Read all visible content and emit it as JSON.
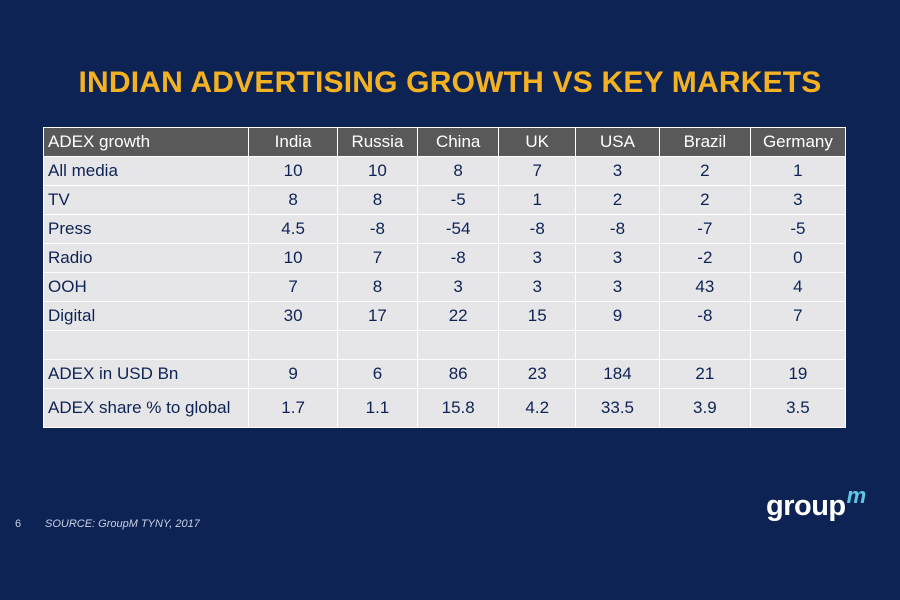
{
  "slide": {
    "title": "INDIAN ADVERTISING GROWTH VS KEY MARKETS",
    "page_number": "6",
    "source": "SOURCE: GroupM TYNY, 2017"
  },
  "logo": {
    "main": "group",
    "sup": "m"
  },
  "table": {
    "headers": [
      "ADEX growth",
      "India",
      "Russia",
      "China",
      "UK",
      "USA",
      "Brazil",
      "Germany"
    ],
    "rows": [
      [
        "All media",
        "10",
        "10",
        "8",
        "7",
        "3",
        "2",
        "1"
      ],
      [
        "TV",
        "8",
        "8",
        "-5",
        "1",
        "2",
        "2",
        "3"
      ],
      [
        "Press",
        "4.5",
        "-8",
        "-54",
        "-8",
        "-8",
        "-7",
        "-5"
      ],
      [
        "Radio",
        "10",
        "7",
        "-8",
        "3",
        "3",
        "-2",
        "0"
      ],
      [
        "OOH",
        "7",
        "8",
        "3",
        "3",
        "3",
        "43",
        "4"
      ],
      [
        "Digital",
        "30",
        "17",
        "22",
        "15",
        "9",
        "-8",
        "7"
      ],
      [
        "",
        "",
        "",
        "",
        "",
        "",
        "",
        ""
      ],
      [
        "ADEX in USD Bn",
        "9",
        "6",
        "86",
        "23",
        "184",
        "21",
        "19"
      ],
      [
        "ADEX share % to global",
        "1.7",
        "1.1",
        "15.8",
        "4.2",
        "33.5",
        "3.9",
        "3.5"
      ]
    ]
  }
}
